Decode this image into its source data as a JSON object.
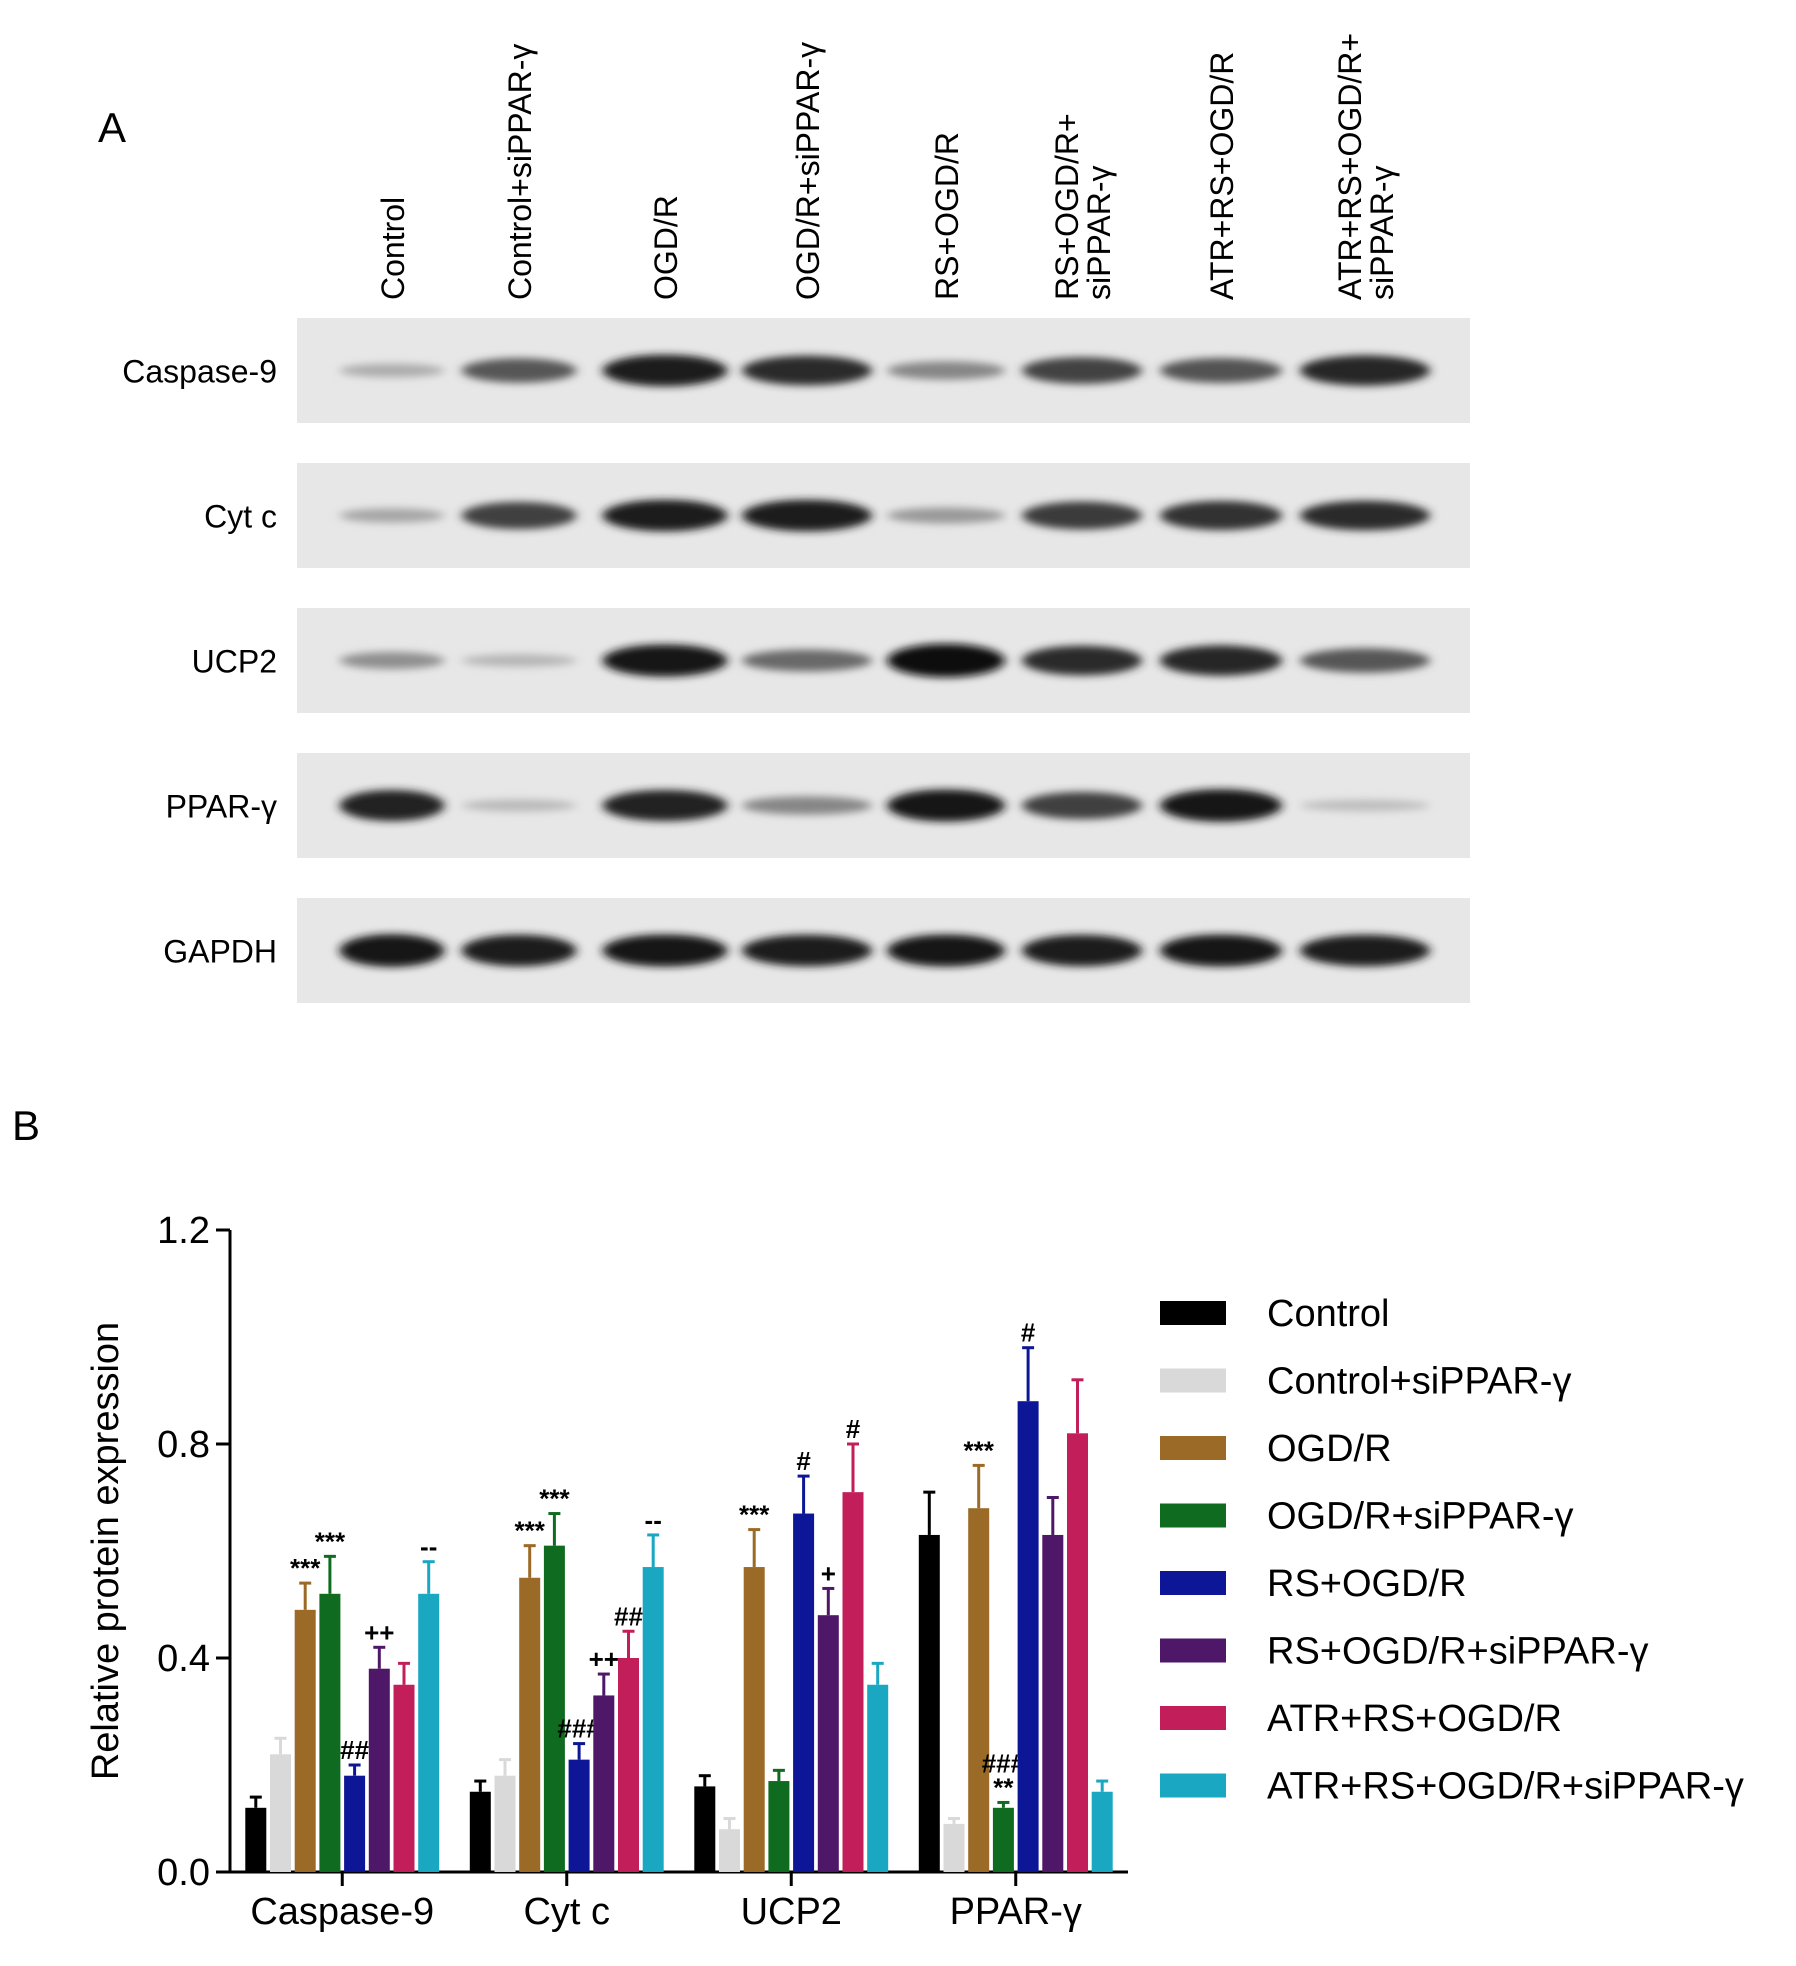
{
  "panel_a": {
    "label": "A",
    "lanes": [
      "Control",
      "Control+siPPAR-γ",
      "OGD/R",
      "OGD/R+siPPAR-γ",
      "RS+OGD/R",
      "RS+OGD/R+ siPPAR-γ",
      "ATR+RS+OGD/R",
      "ATR+RS+OGD/R+ siPPAR-γ"
    ],
    "blots": [
      {
        "label": "Caspase-9",
        "intensity": [
          0.15,
          0.6,
          0.9,
          0.82,
          0.35,
          0.7,
          0.62,
          0.85
        ]
      },
      {
        "label": "Cyt  c",
        "intensity": [
          0.18,
          0.72,
          0.9,
          0.9,
          0.25,
          0.75,
          0.8,
          0.82
        ]
      },
      {
        "label": "UCP2",
        "intensity": [
          0.3,
          0.1,
          0.92,
          0.5,
          0.98,
          0.82,
          0.85,
          0.6
        ]
      },
      {
        "label": "PPAR-γ",
        "intensity": [
          0.88,
          0.08,
          0.88,
          0.35,
          0.92,
          0.72,
          0.94,
          0.06
        ]
      },
      {
        "label": "GAPDH",
        "intensity": [
          0.95,
          0.9,
          0.92,
          0.9,
          0.92,
          0.9,
          0.92,
          0.9
        ]
      }
    ]
  },
  "panel_b": {
    "label": "B"
  },
  "chart_data": {
    "type": "bar",
    "ylabel": "Relative protein expression",
    "xlabel": "",
    "ylim": [
      0,
      1.2
    ],
    "yticks": [
      "0.0",
      "0.4",
      "0.8",
      "1.2"
    ],
    "categories": [
      "Caspase-9",
      "Cyt c",
      "UCP2",
      "PPAR-γ"
    ],
    "legend_position": "right",
    "series": [
      {
        "name": "Control",
        "color": "#000000",
        "values": [
          0.12,
          0.15,
          0.16,
          0.63
        ],
        "errors": [
          0.02,
          0.02,
          0.02,
          0.08
        ],
        "annotations": [
          "",
          "",
          "",
          ""
        ]
      },
      {
        "name": "Control+siPPAR-γ",
        "color": "#d9d9d9",
        "values": [
          0.22,
          0.18,
          0.08,
          0.09
        ],
        "errors": [
          0.03,
          0.03,
          0.02,
          0.01
        ],
        "annotations": [
          "",
          "",
          "",
          ""
        ]
      },
      {
        "name": "OGD/R",
        "color": "#9b6a26",
        "values": [
          0.49,
          0.55,
          0.57,
          0.68
        ],
        "errors": [
          0.05,
          0.06,
          0.07,
          0.08
        ],
        "annotations": [
          "***",
          "***",
          "***",
          "***"
        ]
      },
      {
        "name": "OGD/R+siPPAR-γ",
        "color": "#0f6b1f",
        "values": [
          0.52,
          0.61,
          0.17,
          0.12
        ],
        "errors": [
          0.07,
          0.06,
          0.02,
          0.01
        ],
        "annotations": [
          "***",
          "***",
          "",
          "###\n**"
        ]
      },
      {
        "name": "RS+OGD/R",
        "color": "#0c1696",
        "values": [
          0.18,
          0.21,
          0.67,
          0.88
        ],
        "errors": [
          0.02,
          0.03,
          0.07,
          0.1
        ],
        "annotations": [
          "##",
          "###",
          "#",
          "#"
        ]
      },
      {
        "name": "RS+OGD/R+siPPAR-γ",
        "color": "#4e1768",
        "values": [
          0.38,
          0.33,
          0.48,
          0.63
        ],
        "errors": [
          0.04,
          0.04,
          0.05,
          0.07
        ],
        "annotations": [
          "++",
          "++",
          "+",
          ""
        ]
      },
      {
        "name": "ATR+RS+OGD/R",
        "color": "#c21e5a",
        "values": [
          0.35,
          0.4,
          0.71,
          0.82
        ],
        "errors": [
          0.04,
          0.05,
          0.09,
          0.1
        ],
        "annotations": [
          "",
          "##",
          "#",
          ""
        ]
      },
      {
        "name": "ATR+RS+OGD/R+siPPAR-γ",
        "color": "#19a7c1",
        "values": [
          0.52,
          0.57,
          0.35,
          0.15
        ],
        "errors": [
          0.06,
          0.06,
          0.04,
          0.02
        ],
        "annotations": [
          "--",
          "--",
          "",
          ""
        ]
      }
    ]
  }
}
